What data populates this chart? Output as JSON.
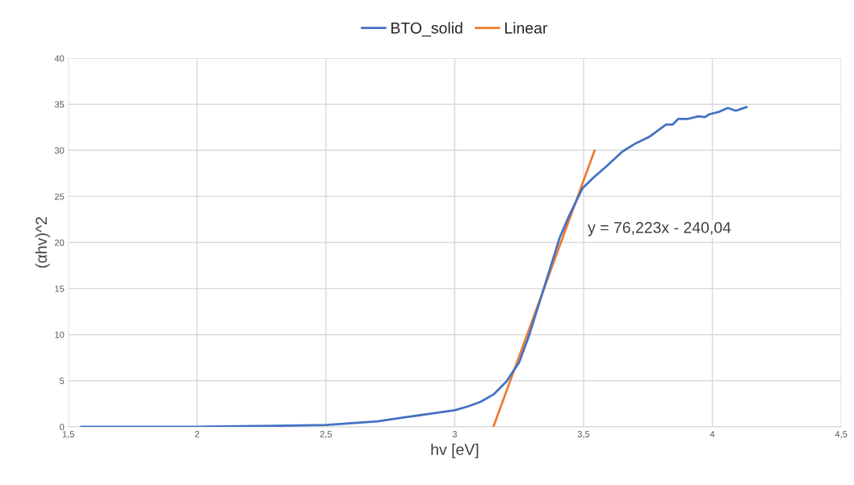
{
  "chart_data": {
    "type": "line",
    "xlabel": "hv [eV]",
    "ylabel": "(αhv)^2",
    "series": [
      {
        "name": "BTO_solid",
        "color": "#4472c4",
        "x": [
          1.55,
          2.0,
          2.3,
          2.5,
          2.6,
          2.7,
          2.8,
          2.9,
          3.0,
          3.05,
          3.1,
          3.15,
          3.2,
          3.25,
          3.287,
          3.339,
          3.407,
          3.444,
          3.496,
          3.537,
          3.59,
          3.652,
          3.705,
          3.757,
          3.82,
          3.846,
          3.867,
          3.903,
          3.945,
          3.971,
          3.987,
          4.028,
          4.06,
          4.091,
          4.133
        ],
        "values": [
          0,
          0,
          0.1,
          0.2,
          0.4,
          0.6,
          1.0,
          1.4,
          1.8,
          2.2,
          2.7,
          3.5,
          4.9,
          7.0,
          9.8,
          14.4,
          20.5,
          22.9,
          25.9,
          27.0,
          28.3,
          29.9,
          30.8,
          31.5,
          32.8,
          32.8,
          33.4,
          33.4,
          33.7,
          33.6,
          33.9,
          34.2,
          34.6,
          34.3,
          34.7
        ]
      },
      {
        "name": "Linear",
        "color": "#ed7d31",
        "x": [
          3.15,
          3.543
        ],
        "values": [
          0,
          30.0
        ]
      }
    ],
    "annotations": [
      "y = 76,223x - 240,04"
    ],
    "xlim": [
      1.5,
      4.5
    ],
    "ylim": [
      0,
      40
    ],
    "xticks": [
      {
        "value": 1.5,
        "label": "1,5"
      },
      2,
      {
        "value": 2.5,
        "label": "2,5"
      },
      3,
      {
        "value": 3.5,
        "label": "3,5"
      },
      4,
      {
        "value": 4.5,
        "label": "4,5"
      }
    ],
    "yticks": [
      0,
      5,
      10,
      15,
      20,
      25,
      30,
      35,
      40
    ],
    "grid": true,
    "legend": "top",
    "marker": "none",
    "line_style": "solid"
  }
}
